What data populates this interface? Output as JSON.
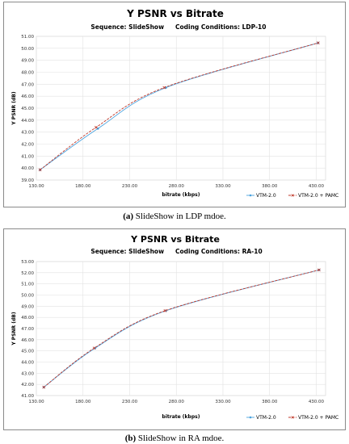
{
  "charts": [
    {
      "title": "Y PSNR vs Bitrate",
      "subtitle_sequence": "Sequence: SlideShow",
      "subtitle_conditions": "Coding Conditions: LDP-10",
      "caption_label": "(a)",
      "caption_text": " SlideShow in LDP mdoe."
    },
    {
      "title": "Y PSNR vs Bitrate",
      "subtitle_sequence": "Sequence: SlideShow",
      "subtitle_conditions": "Coding Conditions: RA-10",
      "caption_label": "(b)",
      "caption_text": " SlideShow in RA mdoe."
    }
  ],
  "chart_data": [
    {
      "type": "line",
      "title": "Y PSNR vs Bitrate",
      "xlabel": "bitrate (kbps)",
      "ylabel": "Y PSNR (dB)",
      "xlim": [
        130,
        440
      ],
      "ylim": [
        39,
        51
      ],
      "xticks": [
        "130.00",
        "180.00",
        "230.00",
        "280.00",
        "330.00",
        "380.00",
        "430.00"
      ],
      "yticks": [
        "39.00",
        "40.00",
        "41.00",
        "42.00",
        "43.00",
        "44.00",
        "45.00",
        "46.00",
        "47.00",
        "48.00",
        "49.00",
        "50.00",
        "51.00"
      ],
      "grid": true,
      "legend": "bottom-right",
      "series": [
        {
          "name": "VTM-2.0",
          "color": "#4aa3df",
          "marker": "o",
          "x": [
            134,
            196,
            269,
            432
          ],
          "y": [
            39.85,
            43.3,
            46.72,
            50.45
          ]
        },
        {
          "name": "VTM-2.0 + PAMC",
          "color": "#c0392b",
          "marker": "x",
          "x": [
            134,
            194,
            267,
            432
          ],
          "y": [
            39.85,
            43.4,
            46.72,
            50.45
          ]
        }
      ]
    },
    {
      "type": "line",
      "title": "Y PSNR vs Bitrate",
      "xlabel": "bitrate (kbps)",
      "ylabel": "Y PSNR (dB)",
      "xlim": [
        130,
        440
      ],
      "ylim": [
        41,
        53
      ],
      "xticks": [
        "130.00",
        "180.00",
        "230.00",
        "280.00",
        "330.00",
        "380.00",
        "430.00"
      ],
      "yticks": [
        "41.00",
        "42.00",
        "43.00",
        "44.00",
        "45.00",
        "46.00",
        "47.00",
        "48.00",
        "49.00",
        "50.00",
        "51.00",
        "52.00",
        "53.00"
      ],
      "grid": true,
      "legend": "bottom-right",
      "series": [
        {
          "name": "VTM-2.0",
          "color": "#4aa3df",
          "marker": "o",
          "x": [
            138,
            193,
            269,
            433
          ],
          "y": [
            41.75,
            45.25,
            48.6,
            52.25
          ]
        },
        {
          "name": "VTM-2.0 + PAMC",
          "color": "#c0392b",
          "marker": "x",
          "x": [
            138,
            192,
            268,
            433
          ],
          "y": [
            41.75,
            45.25,
            48.6,
            52.25
          ]
        }
      ]
    }
  ]
}
